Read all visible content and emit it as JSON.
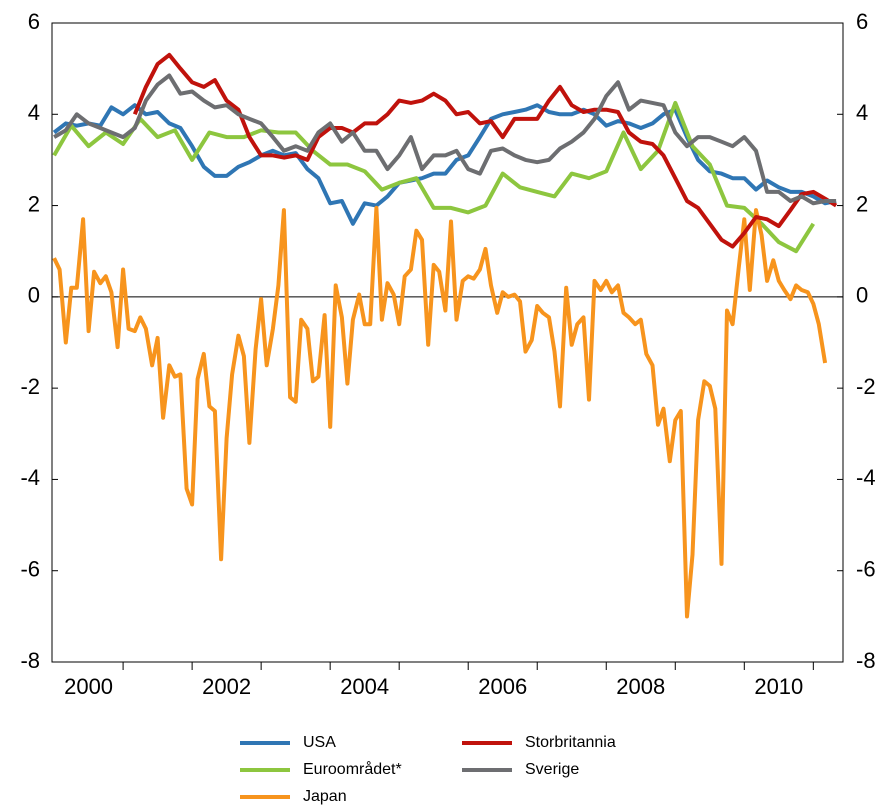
{
  "chart_data": {
    "type": "line",
    "xlim": [
      1999.97,
      2011.43
    ],
    "xticks": [
      2001,
      2002,
      2003,
      2004,
      2005,
      2006,
      2007,
      2008,
      2009,
      2010,
      2011
    ],
    "xtick_labels": [
      {
        "value": 2000.5,
        "label": "2000"
      },
      {
        "value": 2002.5,
        "label": "2002"
      },
      {
        "value": 2004.5,
        "label": "2004"
      },
      {
        "value": 2006.5,
        "label": "2006"
      },
      {
        "value": 2008.5,
        "label": "2008"
      },
      {
        "value": 2010.5,
        "label": "2010"
      }
    ],
    "ylim": [
      -8,
      6
    ],
    "yticks": [
      -8,
      -6,
      -4,
      -2,
      0,
      2,
      4,
      6
    ],
    "y2lim": [
      -8,
      6
    ],
    "y2ticks": [
      -8,
      -6,
      -4,
      -2,
      0,
      2,
      4,
      6
    ],
    "zero_line": true,
    "legend": "bottom",
    "series": [
      {
        "name": "USA",
        "color": "#2f76b4",
        "x": [
          2000.0,
          2000.17,
          2000.33,
          2000.5,
          2000.67,
          2000.83,
          2001.0,
          2001.17,
          2001.33,
          2001.5,
          2001.67,
          2001.83,
          2002.0,
          2002.17,
          2002.33,
          2002.5,
          2002.67,
          2002.83,
          2003.0,
          2003.17,
          2003.33,
          2003.5,
          2003.67,
          2003.83,
          2004.0,
          2004.17,
          2004.33,
          2004.5,
          2004.67,
          2004.83,
          2005.0,
          2005.17,
          2005.33,
          2005.5,
          2005.67,
          2005.83,
          2006.0,
          2006.17,
          2006.33,
          2006.5,
          2006.67,
          2006.83,
          2007.0,
          2007.17,
          2007.33,
          2007.5,
          2007.67,
          2007.83,
          2008.0,
          2008.17,
          2008.33,
          2008.5,
          2008.67,
          2008.83,
          2009.0,
          2009.17,
          2009.33,
          2009.5,
          2009.67,
          2009.83,
          2010.0,
          2010.17,
          2010.33,
          2010.5,
          2010.67,
          2010.83,
          2011.0,
          2011.17,
          2011.33
        ],
        "values": [
          3.6,
          3.8,
          3.75,
          3.8,
          3.75,
          4.15,
          4.0,
          4.2,
          4.0,
          4.05,
          3.8,
          3.7,
          3.3,
          2.85,
          2.65,
          2.65,
          2.85,
          2.95,
          3.1,
          3.2,
          3.1,
          3.15,
          2.8,
          2.6,
          2.05,
          2.1,
          1.6,
          2.05,
          2.0,
          2.2,
          2.5,
          2.55,
          2.6,
          2.7,
          2.7,
          3.0,
          3.1,
          3.5,
          3.9,
          4.0,
          4.05,
          4.1,
          4.2,
          4.05,
          4.0,
          4.0,
          4.1,
          4.0,
          3.75,
          3.85,
          3.8,
          3.7,
          3.8,
          4.0,
          4.1,
          3.5,
          3.0,
          2.75,
          2.7,
          2.6,
          2.6,
          2.35,
          2.55,
          2.4,
          2.3,
          2.3,
          2.2,
          2.05,
          2.1
        ]
      },
      {
        "name": "Euroområdet*",
        "color": "#8dc63f",
        "x": [
          2000.0,
          2000.25,
          2000.5,
          2000.75,
          2001.0,
          2001.25,
          2001.5,
          2001.75,
          2002.0,
          2002.25,
          2002.5,
          2002.75,
          2003.0,
          2003.25,
          2003.5,
          2003.75,
          2004.0,
          2004.25,
          2004.5,
          2004.75,
          2005.0,
          2005.25,
          2005.5,
          2005.75,
          2006.0,
          2006.25,
          2006.5,
          2006.75,
          2007.0,
          2007.25,
          2007.5,
          2007.75,
          2008.0,
          2008.25,
          2008.5,
          2008.75,
          2009.0,
          2009.25,
          2009.5,
          2009.75,
          2010.0,
          2010.25,
          2010.5,
          2010.75,
          2011.0
        ],
        "values": [
          3.1,
          3.75,
          3.3,
          3.6,
          3.35,
          3.9,
          3.5,
          3.65,
          3.0,
          3.6,
          3.5,
          3.5,
          3.65,
          3.6,
          3.6,
          3.2,
          2.9,
          2.9,
          2.75,
          2.35,
          2.5,
          2.6,
          1.95,
          1.95,
          1.85,
          2.0,
          2.7,
          2.4,
          2.3,
          2.2,
          2.7,
          2.6,
          2.75,
          3.6,
          2.8,
          3.2,
          4.25,
          3.3,
          2.9,
          2.0,
          1.95,
          1.6,
          1.2,
          1.0,
          1.6
        ]
      },
      {
        "name": "Japan",
        "color": "#f7941d",
        "x": [
          2000.0,
          2000.08,
          2000.17,
          2000.25,
          2000.33,
          2000.42,
          2000.5,
          2000.58,
          2000.67,
          2000.75,
          2000.83,
          2000.92,
          2001.0,
          2001.08,
          2001.17,
          2001.25,
          2001.33,
          2001.42,
          2001.5,
          2001.58,
          2001.67,
          2001.75,
          2001.83,
          2001.92,
          2002.0,
          2002.08,
          2002.17,
          2002.25,
          2002.33,
          2002.42,
          2002.5,
          2002.58,
          2002.67,
          2002.75,
          2002.83,
          2002.92,
          2003.0,
          2003.08,
          2003.17,
          2003.25,
          2003.33,
          2003.42,
          2003.5,
          2003.58,
          2003.67,
          2003.75,
          2003.83,
          2003.92,
          2004.0,
          2004.08,
          2004.17,
          2004.25,
          2004.33,
          2004.42,
          2004.5,
          2004.58,
          2004.67,
          2004.75,
          2004.83,
          2004.92,
          2005.0,
          2005.08,
          2005.17,
          2005.25,
          2005.33,
          2005.42,
          2005.5,
          2005.58,
          2005.67,
          2005.75,
          2005.83,
          2005.92,
          2006.0,
          2006.08,
          2006.17,
          2006.25,
          2006.33,
          2006.42,
          2006.5,
          2006.58,
          2006.67,
          2006.75,
          2006.83,
          2006.92,
          2007.0,
          2007.08,
          2007.17,
          2007.25,
          2007.33,
          2007.42,
          2007.5,
          2007.58,
          2007.67,
          2007.75,
          2007.83,
          2007.92,
          2008.0,
          2008.08,
          2008.17,
          2008.25,
          2008.33,
          2008.42,
          2008.5,
          2008.58,
          2008.67,
          2008.75,
          2008.83,
          2008.92,
          2009.0,
          2009.08,
          2009.17,
          2009.25,
          2009.33,
          2009.42,
          2009.5,
          2009.58,
          2009.67,
          2009.75,
          2009.83,
          2009.92,
          2010.0,
          2010.08,
          2010.17,
          2010.25,
          2010.33,
          2010.42,
          2010.5,
          2010.58,
          2010.67,
          2010.75,
          2010.83,
          2010.92,
          2011.0,
          2011.08,
          2011.17
        ],
        "values": [
          0.85,
          0.6,
          -1,
          0.2,
          0.2,
          1.7,
          -0.75,
          0.55,
          0.3,
          0.45,
          0.1,
          -1.1,
          0.6,
          -0.7,
          -0.75,
          -0.45,
          -0.7,
          -1.5,
          -0.9,
          -2.65,
          -1.5,
          -1.75,
          -1.7,
          -4.2,
          -4.55,
          -1.8,
          -1.25,
          -2.4,
          -2.5,
          -5.75,
          -3.1,
          -1.7,
          -0.85,
          -1.3,
          -3.2,
          -1.15,
          -0.05,
          -1.5,
          -0.7,
          0.25,
          1.9,
          -2.2,
          -2.3,
          -0.5,
          -0.7,
          -1.85,
          -1.75,
          -0.4,
          -2.85,
          0.25,
          -0.45,
          -1.9,
          -0.5,
          0.05,
          -0.6,
          -0.6,
          1.95,
          -0.5,
          0.3,
          0.05,
          -0.6,
          0.45,
          0.6,
          1.45,
          1.25,
          -1.05,
          0.7,
          0.55,
          -0.3,
          1.65,
          -0.5,
          0.35,
          0.45,
          0.4,
          0.6,
          1.05,
          0.25,
          -0.35,
          0.1,
          0,
          0.05,
          -0.1,
          -1.2,
          -0.95,
          -0.2,
          -0.35,
          -0.45,
          -1.2,
          -2.4,
          0.2,
          -1.05,
          -0.6,
          -0.45,
          -2.25,
          0.35,
          0.15,
          0.35,
          0.1,
          0.25,
          -0.35,
          -0.45,
          -0.6,
          -0.5,
          -1.25,
          -1.5,
          -2.8,
          -2.45,
          -3.6,
          -2.7,
          -2.5,
          -7,
          -5.65,
          -2.7,
          -1.85,
          -1.95,
          -2.45,
          -5.85,
          -0.3,
          -0.6,
          0.65,
          1.7,
          0.15,
          1.9,
          1.35,
          0.35,
          0.8,
          0.35,
          0.15,
          -0.05,
          0.25,
          0.15,
          0.1,
          -0.15,
          -0.6,
          -1.45
        ]
      },
      {
        "name": "Storbritannia",
        "color": "#c0120c",
        "x": [
          2001.17,
          2001.33,
          2001.5,
          2001.67,
          2001.83,
          2002.0,
          2002.17,
          2002.33,
          2002.5,
          2002.67,
          2002.83,
          2003.0,
          2003.17,
          2003.33,
          2003.5,
          2003.67,
          2003.83,
          2004.0,
          2004.17,
          2004.33,
          2004.5,
          2004.67,
          2004.83,
          2005.0,
          2005.17,
          2005.33,
          2005.5,
          2005.67,
          2005.83,
          2006.0,
          2006.17,
          2006.33,
          2006.5,
          2006.67,
          2006.83,
          2007.0,
          2007.17,
          2007.33,
          2007.5,
          2007.67,
          2007.83,
          2008.0,
          2008.17,
          2008.33,
          2008.5,
          2008.67,
          2008.83,
          2009.0,
          2009.17,
          2009.33,
          2009.5,
          2009.67,
          2009.83,
          2010.0,
          2010.17,
          2010.33,
          2010.5,
          2010.67,
          2010.83,
          2011.0,
          2011.17,
          2011.33
        ],
        "values": [
          4.0,
          4.6,
          5.1,
          5.3,
          5.0,
          4.7,
          4.6,
          4.75,
          4.3,
          4.1,
          3.5,
          3.1,
          3.1,
          3.05,
          3.1,
          3.0,
          3.5,
          3.7,
          3.7,
          3.6,
          3.8,
          3.8,
          4.0,
          4.3,
          4.25,
          4.3,
          4.45,
          4.3,
          4.0,
          4.05,
          3.8,
          3.85,
          3.5,
          3.9,
          3.9,
          3.9,
          4.3,
          4.6,
          4.2,
          4.05,
          4.1,
          4.1,
          4.05,
          3.6,
          3.4,
          3.35,
          3.1,
          2.6,
          2.1,
          1.95,
          1.6,
          1.25,
          1.1,
          1.4,
          1.75,
          1.7,
          1.55,
          1.9,
          2.25,
          2.3,
          2.15,
          2.0
        ]
      },
      {
        "name": "Sverige",
        "color": "#6d6e71",
        "x": [
          2000.0,
          2000.17,
          2000.33,
          2000.5,
          2000.67,
          2000.83,
          2001.0,
          2001.17,
          2001.33,
          2001.5,
          2001.67,
          2001.83,
          2002.0,
          2002.17,
          2002.33,
          2002.5,
          2002.67,
          2002.83,
          2003.0,
          2003.17,
          2003.33,
          2003.5,
          2003.67,
          2003.83,
          2004.0,
          2004.17,
          2004.33,
          2004.5,
          2004.67,
          2004.83,
          2005.0,
          2005.17,
          2005.33,
          2005.5,
          2005.67,
          2005.83,
          2006.0,
          2006.17,
          2006.33,
          2006.5,
          2006.67,
          2006.83,
          2007.0,
          2007.17,
          2007.33,
          2007.5,
          2007.67,
          2007.83,
          2008.0,
          2008.17,
          2008.33,
          2008.5,
          2008.67,
          2008.83,
          2009.0,
          2009.17,
          2009.33,
          2009.5,
          2009.67,
          2009.83,
          2010.0,
          2010.17,
          2010.33,
          2010.5,
          2010.67,
          2010.83,
          2011.0,
          2011.17,
          2011.33
        ],
        "values": [
          3.5,
          3.65,
          4.0,
          3.8,
          3.7,
          3.6,
          3.5,
          3.7,
          4.3,
          4.65,
          4.85,
          4.45,
          4.5,
          4.3,
          4.15,
          4.2,
          4.0,
          3.9,
          3.8,
          3.5,
          3.2,
          3.3,
          3.2,
          3.6,
          3.8,
          3.4,
          3.6,
          3.2,
          3.2,
          2.8,
          3.1,
          3.5,
          2.8,
          3.1,
          3.1,
          3.2,
          2.8,
          2.7,
          3.2,
          3.25,
          3.1,
          3.0,
          2.95,
          3.0,
          3.25,
          3.4,
          3.6,
          3.9,
          4.4,
          4.7,
          4.1,
          4.3,
          4.25,
          4.2,
          3.6,
          3.3,
          3.5,
          3.5,
          3.4,
          3.3,
          3.5,
          3.2,
          2.3,
          2.3,
          2.1,
          2.2,
          2.05,
          2.1,
          2.1
        ]
      }
    ]
  }
}
